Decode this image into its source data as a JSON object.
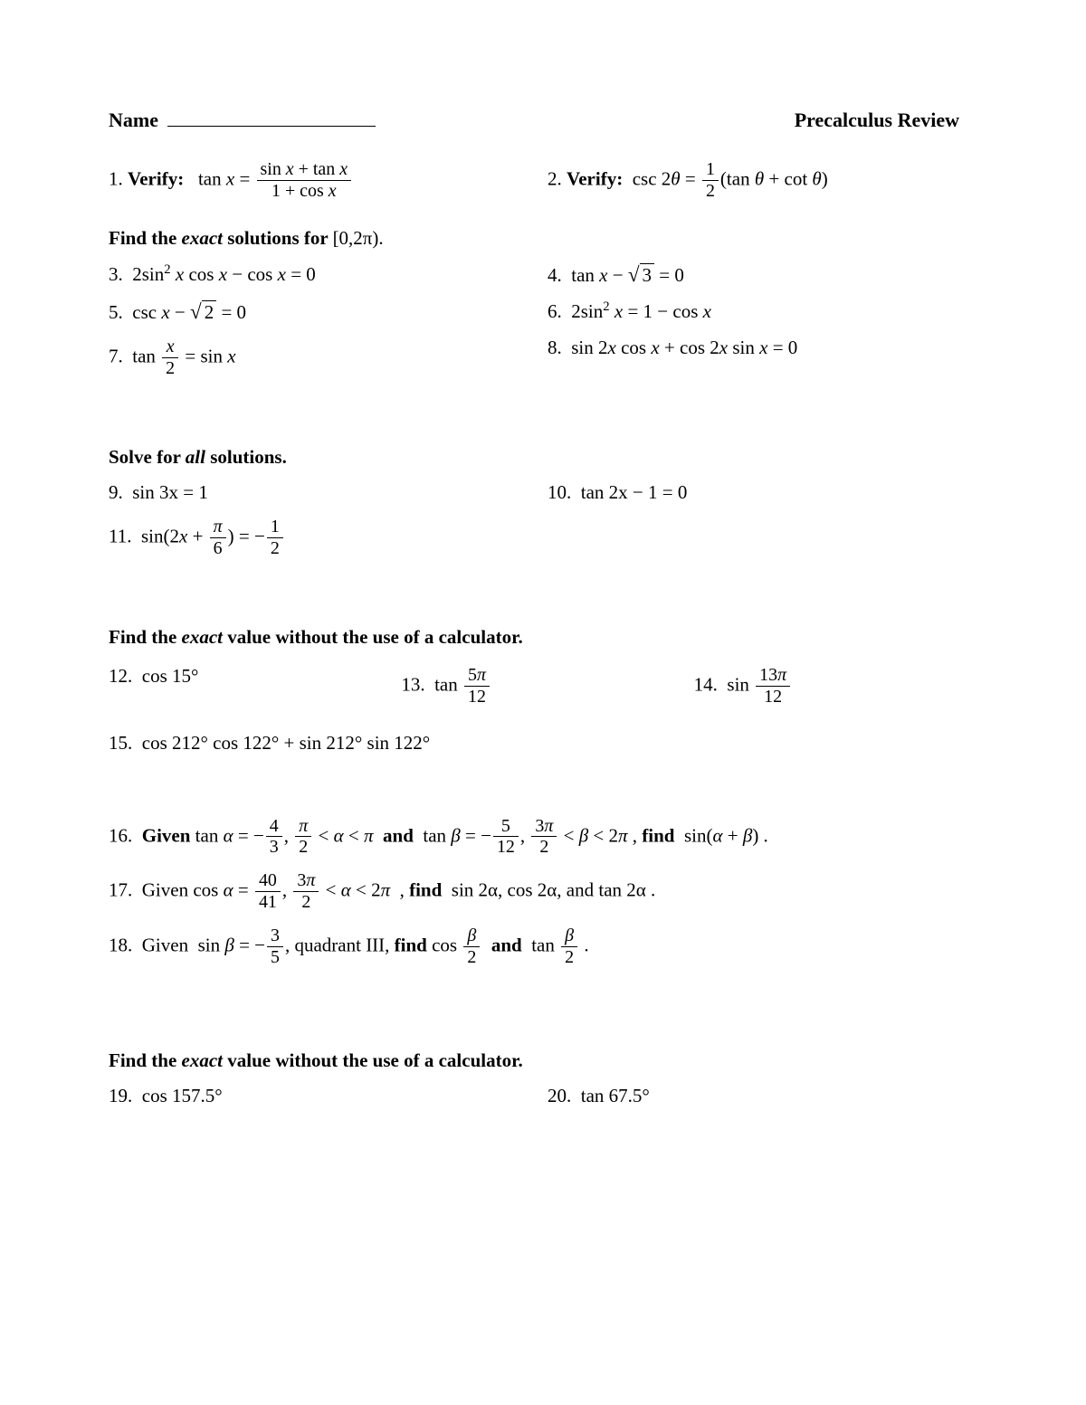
{
  "header": {
    "name_label": "Name",
    "title": "Precalculus Review"
  },
  "p1": {
    "num": "1.",
    "label": "Verify:"
  },
  "p2": {
    "num": "2.",
    "label": "Verify:"
  },
  "sectA": {
    "prefix": "Find the ",
    "emph": "exact",
    "suffix": " solutions for ",
    "interval": "[0,2π)."
  },
  "p3": {
    "num": "3."
  },
  "p4": {
    "num": "4."
  },
  "p5": {
    "num": "5."
  },
  "p6": {
    "num": "6."
  },
  "p7": {
    "num": "7."
  },
  "p8": {
    "num": "8."
  },
  "sectB": {
    "prefix": "Solve for ",
    "emph": "all",
    "suffix": " solutions."
  },
  "p9": {
    "num": "9.",
    "eq": "sin 3x = 1"
  },
  "p10": {
    "num": "10.",
    "eq": "tan 2x − 1 = 0"
  },
  "p11": {
    "num": "11."
  },
  "sectC": {
    "prefix": "Find the ",
    "emph": "exact",
    "suffix": " value without the use of a calculator."
  },
  "p12": {
    "num": "12.",
    "expr": "cos 15°"
  },
  "p13": {
    "num": "13."
  },
  "p14": {
    "num": "14."
  },
  "p15": {
    "num": "15.",
    "expr": "cos 212° cos 122° + sin 212° sin 122°"
  },
  "p16": {
    "num": "16.",
    "given": "Given",
    "and": "and",
    "find": "find"
  },
  "p17": {
    "num": "17.",
    "given": "Given",
    "find": "find",
    "tail": "sin 2α, cos 2α,  and  tan 2α ."
  },
  "p18": {
    "num": "18.",
    "given": "Given",
    "mid": ",  quadrant III, ",
    "find": "find",
    "and": "and"
  },
  "sectD": {
    "prefix": "Find the ",
    "emph": "exact",
    "suffix": " value without the use of a calculator."
  },
  "p19": {
    "num": "19.",
    "expr": "cos 157.5°"
  },
  "p20": {
    "num": "20.",
    "expr": "tan 67.5°"
  }
}
